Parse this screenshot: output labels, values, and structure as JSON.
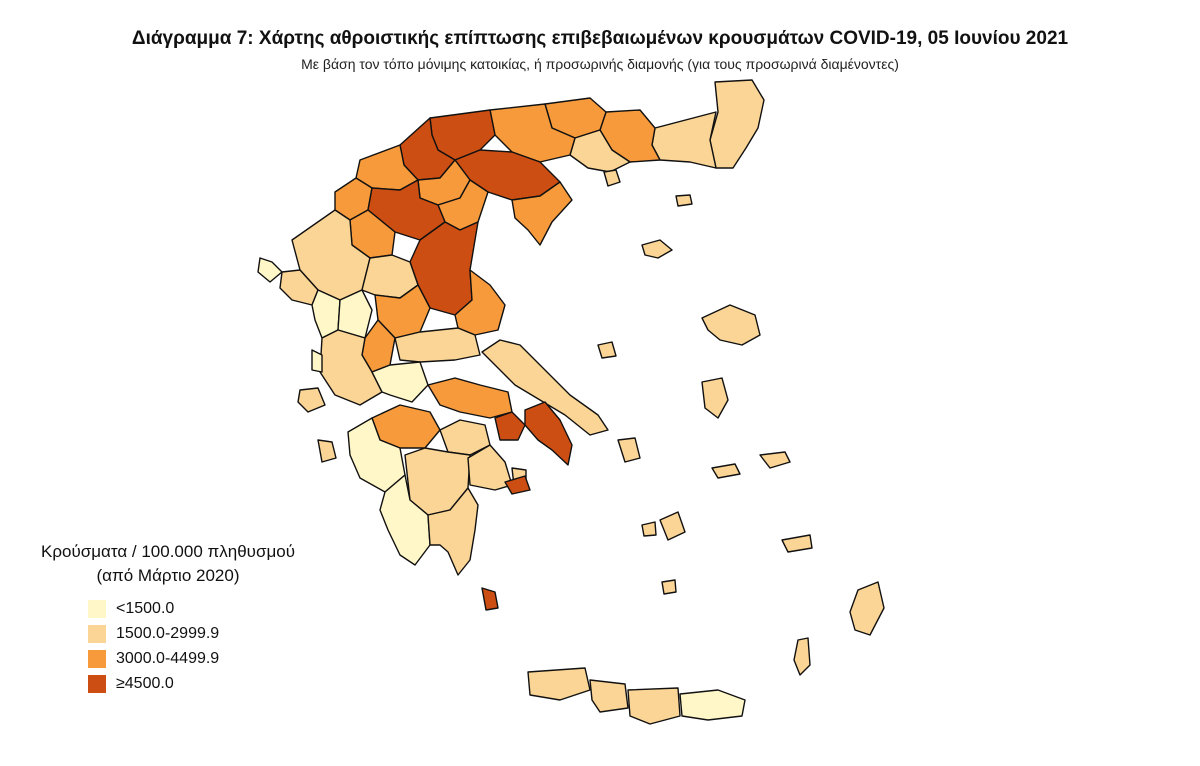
{
  "title": "Διάγραμμα 7: Χάρτης αθροιστικής επίπτωσης επιβεβαιωμένων κρουσμάτων COVID-19, 05 Ιουνίου 2021",
  "subtitle": "Με βάση τον τόπο μόνιμης κατοικίας, ή προσωρινής διαμονής (για τους προσωρινά διαμένοντες)",
  "legend": {
    "title_line1": "Κρούσματα / 100.000 πληθυσμού",
    "title_line2": "(από Μάρτιο 2020)",
    "items": [
      {
        "label": "<1500.0",
        "color": "#fff7c8"
      },
      {
        "label": "1500.0-2999.9",
        "color": "#fbd595"
      },
      {
        "label": "3000.0-4499.9",
        "color": "#f69a3c"
      },
      {
        "label": "≥4500.0",
        "color": "#cc4e12"
      }
    ]
  }
}
